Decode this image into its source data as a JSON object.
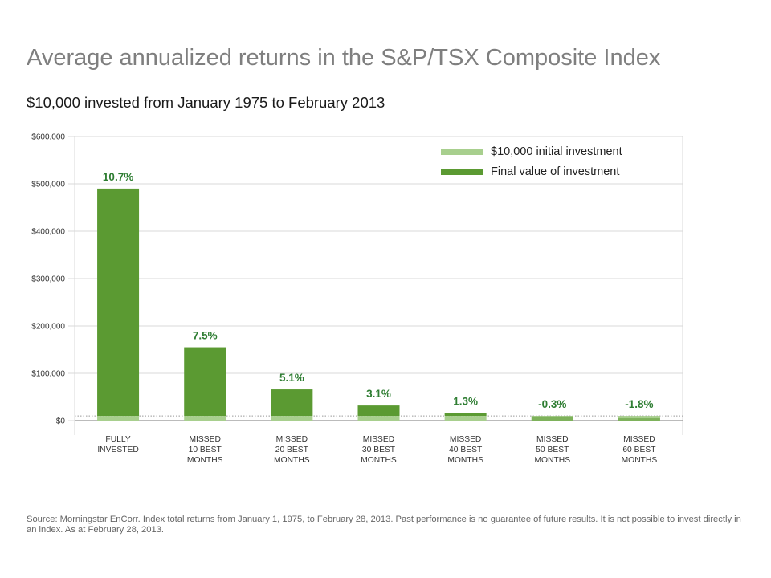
{
  "title": "Average annualized returns in the S&P/TSX Composite Index",
  "subtitle": "$10,000 invested from January 1975 to February 2013",
  "source": "Source: Morningstar EnCorr. Index total returns from January 1, 1975, to February 28, 2013. Past performance is no guarantee of future results. It is not possible to invest directly in an index. As at February 28, 2013.",
  "colors": {
    "initial": "#a8cf8e",
    "final": "#5b9a32",
    "label": "#2e7d32",
    "grid": "#d9d9d9"
  },
  "chart_data": {
    "type": "bar",
    "title": "",
    "xlabel": "",
    "ylabel": "",
    "ylim": [
      0,
      600000
    ],
    "yticks": [
      0,
      100000,
      200000,
      300000,
      400000,
      500000,
      600000
    ],
    "ytick_labels": [
      "$0",
      "$100,000",
      "$200,000",
      "$300,000",
      "$400,000",
      "$500,000",
      "$600,000"
    ],
    "grid": true,
    "legend_position": "top-right",
    "categories": [
      [
        "FULLY",
        "INVESTED"
      ],
      [
        "MISSED",
        "10 BEST",
        "MONTHS"
      ],
      [
        "MISSED",
        "20 BEST",
        "MONTHS"
      ],
      [
        "MISSED",
        "30 BEST",
        "MONTHS"
      ],
      [
        "MISSED",
        "40 BEST",
        "MONTHS"
      ],
      [
        "MISSED",
        "50 BEST",
        "MONTHS"
      ],
      [
        "MISSED",
        "60 BEST",
        "MONTHS"
      ]
    ],
    "series": [
      {
        "name": "$10,000 initial investment",
        "values": [
          10000,
          10000,
          10000,
          10000,
          10000,
          10000,
          10000
        ]
      },
      {
        "name": "Final value of investment",
        "values": [
          490000,
          155000,
          66000,
          32000,
          16000,
          9000,
          5000
        ]
      }
    ],
    "data_labels": [
      "10.7%",
      "7.5%",
      "5.1%",
      "3.1%",
      "1.3%",
      "-0.3%",
      "-1.8%"
    ]
  }
}
